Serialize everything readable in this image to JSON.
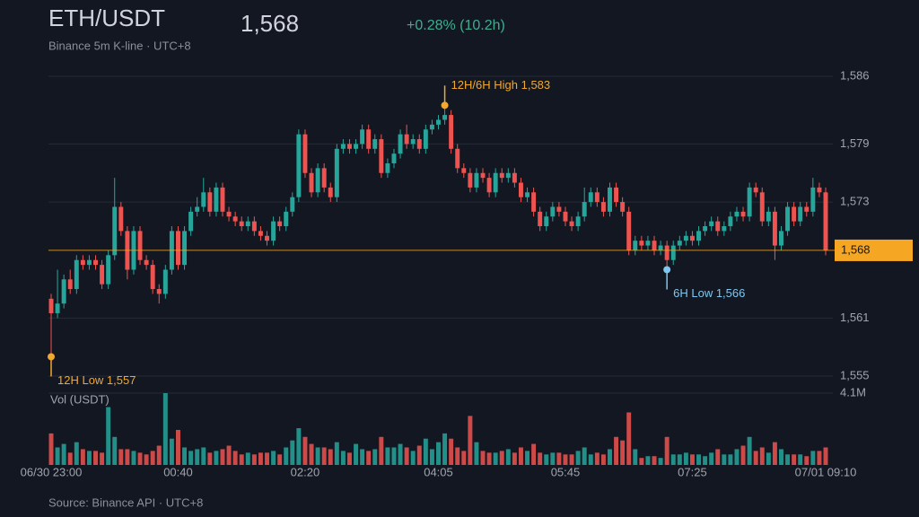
{
  "chart_data": {
    "type": "candlestick",
    "title": "ETH/USDT",
    "subtitle": "Binance 5m K-line · UTC+8",
    "price": {
      "value": 1568,
      "label": "1,568"
    },
    "change": "+0.28% (10.2h)",
    "volume_label": "Vol (USDT)",
    "source": "Source: Binance API · UTC+8",
    "up_color": "#26a69a",
    "down_color": "#ef5350",
    "categories": [
      "06/30 23:00",
      null,
      null,
      null,
      null,
      null,
      null,
      null,
      null,
      null,
      null,
      null,
      null,
      null,
      null,
      null,
      null,
      null,
      null,
      null,
      "00:40",
      null,
      null,
      null,
      null,
      null,
      null,
      null,
      null,
      null,
      null,
      null,
      null,
      null,
      null,
      null,
      null,
      null,
      null,
      null,
      "02:20",
      null,
      null,
      null,
      null,
      null,
      null,
      null,
      null,
      null,
      null,
      null,
      null,
      null,
      null,
      null,
      null,
      null,
      null,
      null,
      null,
      "04:05",
      null,
      null,
      null,
      null,
      null,
      null,
      null,
      null,
      null,
      null,
      null,
      null,
      null,
      null,
      null,
      null,
      null,
      null,
      null,
      "05:45",
      null,
      null,
      null,
      null,
      null,
      null,
      null,
      null,
      null,
      null,
      null,
      null,
      null,
      null,
      null,
      null,
      null,
      null,
      null,
      "07:25",
      null,
      null,
      null,
      null,
      null,
      null,
      null,
      null,
      null,
      null,
      null,
      null,
      null,
      null,
      null,
      null,
      null,
      null,
      null,
      null,
      "07/01 09:10"
    ],
    "series": [
      {
        "name": "ETH/USDT",
        "open": [
          1563,
          1561.5,
          1562.5,
          1565,
          1564,
          1567,
          1566.5,
          1567,
          1566.5,
          1564.5,
          1567.5,
          1572.5,
          1570,
          1566,
          1570,
          1567,
          1566.5,
          1564,
          1563.5,
          1566,
          1570,
          1566.5,
          1570,
          1572,
          1572.5,
          1574,
          1572,
          1574.5,
          1572,
          1571.5,
          1571,
          1570.5,
          1571,
          1570,
          1569.5,
          1569,
          1571,
          1570.5,
          1572,
          1573.5,
          1580,
          1576,
          1574,
          1576.5,
          1574.5,
          1573.5,
          1578.5,
          1579,
          1578.5,
          1579,
          1580.5,
          1578.5,
          1579.5,
          1576,
          1577,
          1578,
          1580,
          1579,
          1579.5,
          1578.5,
          1580.5,
          1581,
          1581.5,
          1582,
          1578.5,
          1576.5,
          1576,
          1574.5,
          1576,
          1575.5,
          1574,
          1576,
          1575.5,
          1576,
          1575,
          1573.5,
          1574,
          1572,
          1570.5,
          1571.5,
          1572.5,
          1572,
          1571,
          1570.5,
          1571.5,
          1573,
          1574,
          1573,
          1572,
          1574.5,
          1573,
          1572,
          1568,
          1569,
          1568.5,
          1569,
          1568,
          1568.5,
          1567,
          1568.5,
          1569,
          1569.5,
          1569,
          1570,
          1570.5,
          1571,
          1570,
          1570.5,
          1571.5,
          1572,
          1571.5,
          1574.5,
          1574,
          1571,
          1572,
          1568.5,
          1570,
          1572.5,
          1571,
          1572.5,
          1572,
          1574.5,
          1574
        ],
        "high": [
          1563.5,
          1566,
          1565.5,
          1566,
          1567.5,
          1567.5,
          1567.5,
          1567.5,
          1567,
          1568,
          1575.5,
          1573,
          1570.5,
          1570.5,
          1570.5,
          1567.5,
          1567,
          1564.5,
          1566.5,
          1570.5,
          1570.5,
          1570.5,
          1572.5,
          1573.5,
          1575.5,
          1574.5,
          1575,
          1575,
          1572.5,
          1572,
          1571.5,
          1571.5,
          1571.5,
          1570.5,
          1570,
          1571.5,
          1571.5,
          1572.5,
          1574,
          1580.5,
          1580.5,
          1576.5,
          1577,
          1577,
          1575,
          1579,
          1579.5,
          1579.5,
          1579.5,
          1581,
          1581,
          1580,
          1580,
          1577.5,
          1578.5,
          1580.5,
          1581,
          1580,
          1580,
          1581,
          1581.5,
          1582,
          1583,
          1582.5,
          1579,
          1577,
          1576.5,
          1576.5,
          1576.5,
          1576,
          1576.5,
          1576.5,
          1576.5,
          1576.5,
          1575.5,
          1574.5,
          1574.5,
          1572.5,
          1572,
          1573,
          1573,
          1572.5,
          1571.5,
          1572,
          1574.5,
          1574.5,
          1574.5,
          1573.5,
          1575,
          1575,
          1573.5,
          1572.5,
          1569.5,
          1569.5,
          1569.5,
          1569.5,
          1569,
          1569,
          1569,
          1569.5,
          1570,
          1570,
          1570.5,
          1571,
          1571.5,
          1571.5,
          1571,
          1572,
          1572.5,
          1572.5,
          1575,
          1575,
          1574.5,
          1572.5,
          1572.5,
          1570.5,
          1573,
          1573,
          1573,
          1573,
          1575.5,
          1575,
          1574.5
        ],
        "low": [
          1557,
          1561,
          1562,
          1563.5,
          1563.5,
          1566,
          1566,
          1566,
          1564,
          1564,
          1567,
          1569.5,
          1565,
          1565.5,
          1566.5,
          1566,
          1563.5,
          1562.5,
          1563,
          1565.5,
          1566,
          1566,
          1569.5,
          1571.5,
          1572,
          1571.5,
          1571.5,
          1571.5,
          1571,
          1570.5,
          1570,
          1570,
          1569.5,
          1569,
          1568.5,
          1568.5,
          1570,
          1570,
          1571.5,
          1573,
          1575.5,
          1573.5,
          1573.5,
          1574,
          1573,
          1573,
          1578,
          1578,
          1578,
          1578.5,
          1578,
          1578,
          1575.5,
          1575.5,
          1576.5,
          1577.5,
          1578.5,
          1578.5,
          1578,
          1578,
          1580,
          1580.5,
          1581,
          1578,
          1576,
          1575.5,
          1574,
          1574,
          1575,
          1573.5,
          1573.5,
          1575,
          1575,
          1574.5,
          1573,
          1573,
          1571.5,
          1570,
          1570,
          1571,
          1571.5,
          1570.5,
          1570,
          1570,
          1571,
          1572.5,
          1572.5,
          1571.5,
          1571.5,
          1572.5,
          1571.5,
          1567.5,
          1567.5,
          1568,
          1568,
          1567.5,
          1567.5,
          1566,
          1566.5,
          1568,
          1568.5,
          1568.5,
          1568.5,
          1569.5,
          1570,
          1569.5,
          1569.5,
          1570,
          1571,
          1571,
          1571,
          1573.5,
          1570.5,
          1570.5,
          1567,
          1568,
          1569.5,
          1570.5,
          1570.5,
          1571.5,
          1571.5,
          1573.5,
          1567.5
        ],
        "close": [
          1561.5,
          1562.5,
          1565,
          1564,
          1567,
          1566.5,
          1567,
          1566.5,
          1564.5,
          1567.5,
          1572.5,
          1570,
          1566,
          1570,
          1567,
          1566.5,
          1564,
          1563.5,
          1566,
          1570,
          1566.5,
          1570,
          1572,
          1572.5,
          1574,
          1572,
          1574.5,
          1572,
          1571.5,
          1571,
          1570.5,
          1571,
          1570,
          1569.5,
          1569,
          1571,
          1570.5,
          1572,
          1573.5,
          1580,
          1576,
          1574,
          1576.5,
          1574.5,
          1573.5,
          1578.5,
          1579,
          1578.5,
          1579,
          1580.5,
          1578.5,
          1579.5,
          1576,
          1577,
          1578,
          1580,
          1579,
          1579.5,
          1578.5,
          1580.5,
          1581,
          1581.5,
          1582,
          1578.5,
          1576.5,
          1576,
          1574.5,
          1576,
          1575.5,
          1574,
          1576,
          1575.5,
          1576,
          1575,
          1573.5,
          1574,
          1572,
          1570.5,
          1571.5,
          1572.5,
          1572,
          1571,
          1570.5,
          1571.5,
          1573,
          1574,
          1573,
          1572,
          1574.5,
          1573,
          1572,
          1568,
          1569,
          1568.5,
          1569,
          1568,
          1568.5,
          1567,
          1568.5,
          1569,
          1569.5,
          1569,
          1570,
          1570.5,
          1571,
          1570,
          1570.5,
          1571.5,
          1572,
          1571.5,
          1574.5,
          1574,
          1571,
          1572,
          1568.5,
          1570,
          1572.5,
          1571,
          1572.5,
          1572,
          1574.5,
          1574,
          1568
        ],
        "volume": [
          1.8,
          1.0,
          1.2,
          0.7,
          1.3,
          0.9,
          0.8,
          0.8,
          0.7,
          3.3,
          1.6,
          0.9,
          0.9,
          0.8,
          0.7,
          0.6,
          0.8,
          1.1,
          4.1,
          1.5,
          2.0,
          1.0,
          0.8,
          0.9,
          1.0,
          0.7,
          0.8,
          0.9,
          1.1,
          0.8,
          0.6,
          0.7,
          0.6,
          0.7,
          0.7,
          0.8,
          0.6,
          1.0,
          1.4,
          2.1,
          1.6,
          1.2,
          1.0,
          1.0,
          0.9,
          1.3,
          0.8,
          0.7,
          1.2,
          0.9,
          0.8,
          0.9,
          1.6,
          1.0,
          1.0,
          1.2,
          1.0,
          0.8,
          1.1,
          1.5,
          0.9,
          1.3,
          1.8,
          1.5,
          1.0,
          0.8,
          2.8,
          1.3,
          0.8,
          0.7,
          0.7,
          0.8,
          0.9,
          0.7,
          1.0,
          0.8,
          1.2,
          0.7,
          0.6,
          0.7,
          0.7,
          0.6,
          0.6,
          0.8,
          1.0,
          0.6,
          0.7,
          0.6,
          0.9,
          1.6,
          1.4,
          3.0,
          0.9,
          0.4,
          0.5,
          0.5,
          0.4,
          1.6,
          0.6,
          0.6,
          0.7,
          0.6,
          0.6,
          0.5,
          0.7,
          0.9,
          0.6,
          0.6,
          0.9,
          1.1,
          1.6,
          0.8,
          1.0,
          0.7,
          1.3,
          0.9,
          0.6,
          0.6,
          0.6,
          0.5,
          0.8,
          0.8,
          1.0
        ]
      }
    ],
    "ylim": [
      1555,
      1586
    ],
    "yticks": [
      {
        "value": 1555,
        "label": "1,555"
      },
      {
        "value": 1561,
        "label": "1,561"
      },
      {
        "value": 1573,
        "label": "1,573"
      },
      {
        "value": 1579,
        "label": "1,579"
      },
      {
        "value": 1586,
        "label": "1,586"
      }
    ],
    "vlim": [
      0,
      4.1
    ],
    "vticks": [
      {
        "value": 4.1,
        "label": "4.1M"
      }
    ],
    "grid": true,
    "annotations": [
      {
        "text": "12H/6H High 1,583",
        "value": 1583,
        "kind": "high",
        "color": "#f0a830"
      },
      {
        "text": "6H Low 1,566",
        "value": 1566,
        "kind": "low",
        "color": "#7ec8f0"
      },
      {
        "text": "12H Low 1,557",
        "value": 1557,
        "kind": "low",
        "color": "#f0a830"
      }
    ]
  }
}
